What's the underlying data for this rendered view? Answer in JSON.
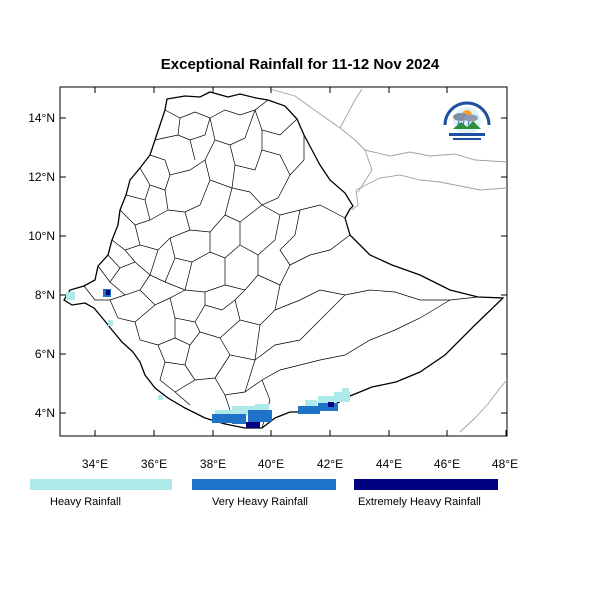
{
  "title": "Exceptional Rainfall for 11-12 Nov 2024",
  "map": {
    "region": "Ethiopia",
    "lon_range": [
      32.7,
      48.1
    ],
    "lat_range": [
      3.25,
      15.2
    ],
    "x_ticks": [
      "34°E",
      "36°E",
      "38°E",
      "40°E",
      "42°E",
      "44°E",
      "46°E",
      "48°E"
    ],
    "y_ticks": [
      "4°N",
      "6°N",
      "8°N",
      "10°N",
      "12°N",
      "14°N"
    ]
  },
  "legend": [
    {
      "label": "Heavy Rainfall",
      "color": "#aeeaea"
    },
    {
      "label": "Very Heavy Rainfall",
      "color": "#1e73c8"
    },
    {
      "label": "Extremely Heavy Rainfall",
      "color": "#000080"
    }
  ],
  "logo": {
    "icon": "meteorology-agency-logo"
  }
}
